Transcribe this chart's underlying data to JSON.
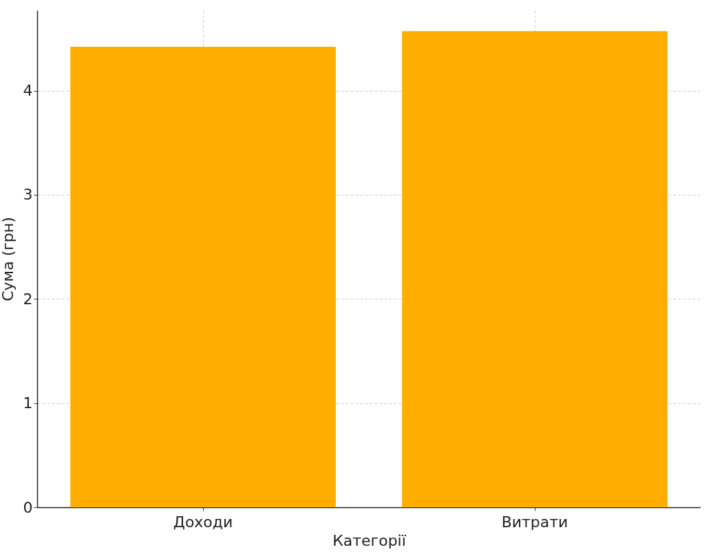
{
  "chart_data": {
    "type": "bar",
    "xlabel": "Категорії",
    "ylabel": "Сума (грн)",
    "categories": [
      "Доходи",
      "Витрати"
    ],
    "values": [
      4.42,
      4.57
    ],
    "color": "#ffae00",
    "ylim": [
      0,
      4.77
    ],
    "yticks": [
      0,
      1,
      2,
      3,
      4
    ],
    "grid": true
  }
}
